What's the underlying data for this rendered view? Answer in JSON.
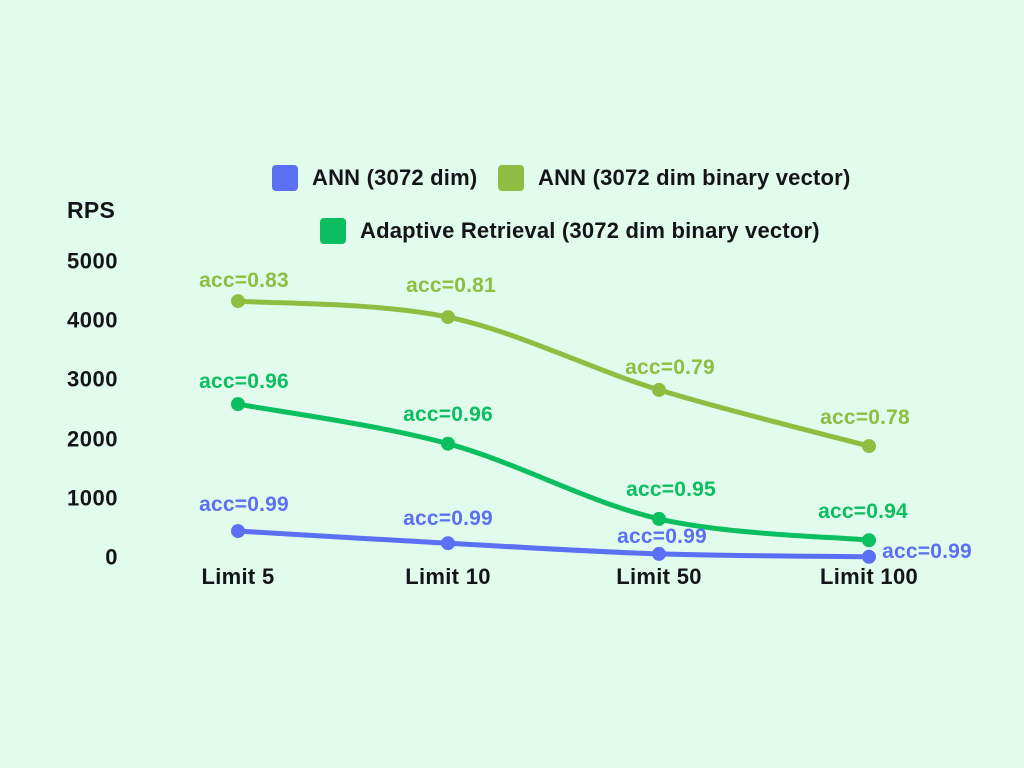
{
  "chart_data": {
    "type": "line",
    "title": "",
    "xlabel": "",
    "ylabel": "RPS",
    "categories": [
      "Limit 5",
      "Limit 10",
      "Limit 50",
      "Limit 100"
    ],
    "yticks": [
      5000,
      4000,
      3000,
      2000,
      1000,
      0
    ],
    "ylim": [
      0,
      5000
    ],
    "grid": false,
    "legend_position": "top",
    "background_color": "#E1FBEC",
    "text_color": "#14151A",
    "series": [
      {
        "name": "ANN (3072 dim)",
        "color": "#5B70F2",
        "values": [
          455,
          250,
          70,
          20
        ],
        "point_labels": [
          "acc=0.99",
          "acc=0.99",
          "acc=0.99",
          "acc=0.99"
        ]
      },
      {
        "name": "ANN (3072 dim binary vector)",
        "color": "#8DBE42",
        "values": [
          4340,
          4070,
          2840,
          1890
        ],
        "point_labels": [
          "acc=0.83",
          "acc=0.81",
          "acc=0.79",
          "acc=0.78"
        ]
      },
      {
        "name": "Adaptive Retrieval (3072 dim binary vector)",
        "color": "#0BBE60",
        "values": [
          2600,
          1930,
          660,
          300
        ],
        "point_labels": [
          "acc=0.96",
          "acc=0.96",
          "acc=0.95",
          "acc=0.94"
        ]
      }
    ]
  }
}
